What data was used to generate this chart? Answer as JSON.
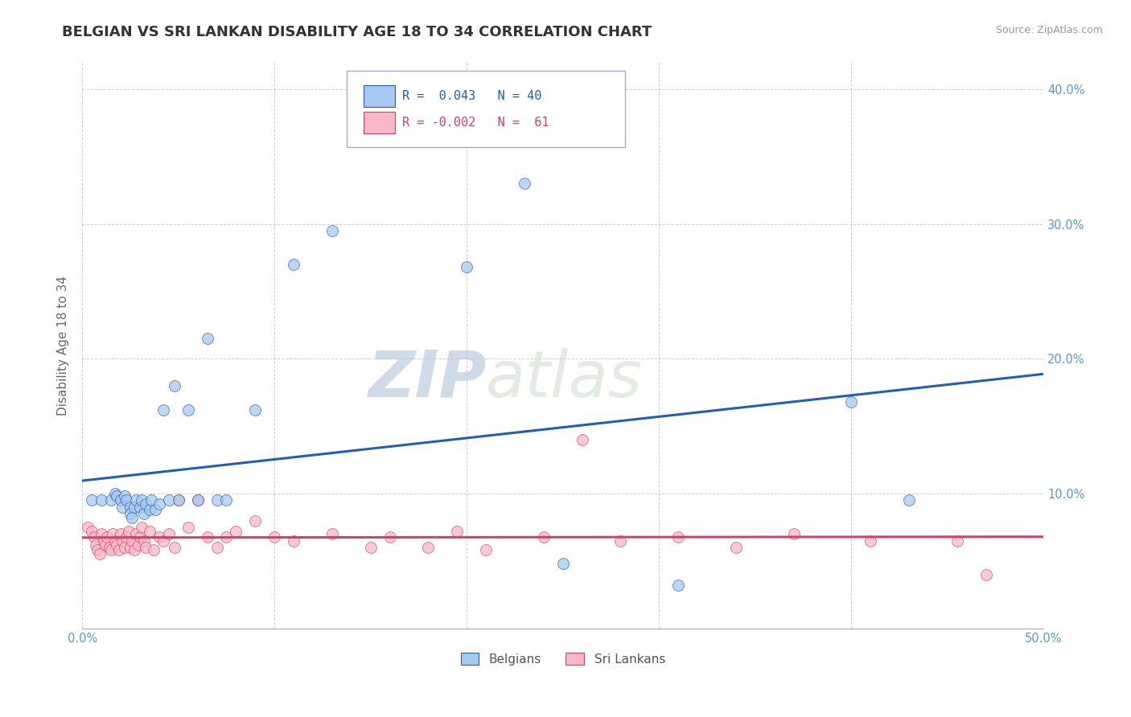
{
  "title": "BELGIAN VS SRI LANKAN DISABILITY AGE 18 TO 34 CORRELATION CHART",
  "source": "Source: ZipAtlas.com",
  "ylabel": "Disability Age 18 to 34",
  "xlim": [
    0.0,
    0.5
  ],
  "ylim": [
    0.0,
    0.42
  ],
  "xticks": [
    0.0,
    0.1,
    0.2,
    0.3,
    0.4,
    0.5
  ],
  "yticks": [
    0.0,
    0.1,
    0.2,
    0.3,
    0.4
  ],
  "xticklabels": [
    "0.0%",
    "",
    "",
    "",
    "",
    "50.0%"
  ],
  "yticklabels_right": [
    "",
    "10.0%",
    "20.0%",
    "30.0%",
    "40.0%"
  ],
  "belgian_color": "#A8C8F0",
  "srilankan_color": "#F8B8C8",
  "belgian_line_color": "#2060B0",
  "srilankan_line_color": "#D04070",
  "watermark": "ZIPatlas",
  "watermark_color": "#C8D8E8",
  "belgian_x": [
    0.005,
    0.01,
    0.015,
    0.017,
    0.018,
    0.02,
    0.021,
    0.022,
    0.023,
    0.025,
    0.025,
    0.026,
    0.027,
    0.028,
    0.03,
    0.031,
    0.032,
    0.033,
    0.035,
    0.036,
    0.038,
    0.04,
    0.042,
    0.045,
    0.048,
    0.05,
    0.055,
    0.06,
    0.065,
    0.07,
    0.075,
    0.09,
    0.11,
    0.13,
    0.2,
    0.23,
    0.25,
    0.31,
    0.4,
    0.43
  ],
  "belgian_y": [
    0.095,
    0.095,
    0.095,
    0.1,
    0.098,
    0.095,
    0.09,
    0.098,
    0.095,
    0.09,
    0.085,
    0.082,
    0.09,
    0.095,
    0.09,
    0.095,
    0.085,
    0.092,
    0.088,
    0.095,
    0.088,
    0.092,
    0.162,
    0.095,
    0.18,
    0.095,
    0.162,
    0.095,
    0.215,
    0.095,
    0.095,
    0.162,
    0.27,
    0.295,
    0.268,
    0.33,
    0.048,
    0.032,
    0.168,
    0.095
  ],
  "srilankan_x": [
    0.003,
    0.005,
    0.006,
    0.007,
    0.008,
    0.009,
    0.01,
    0.011,
    0.012,
    0.013,
    0.014,
    0.015,
    0.016,
    0.017,
    0.018,
    0.019,
    0.02,
    0.021,
    0.022,
    0.023,
    0.024,
    0.025,
    0.026,
    0.027,
    0.028,
    0.029,
    0.03,
    0.031,
    0.032,
    0.033,
    0.035,
    0.037,
    0.04,
    0.042,
    0.045,
    0.048,
    0.05,
    0.055,
    0.06,
    0.065,
    0.07,
    0.075,
    0.08,
    0.09,
    0.1,
    0.11,
    0.13,
    0.15,
    0.16,
    0.18,
    0.195,
    0.21,
    0.24,
    0.26,
    0.28,
    0.31,
    0.34,
    0.37,
    0.41,
    0.455,
    0.47
  ],
  "srilankan_y": [
    0.075,
    0.072,
    0.068,
    0.062,
    0.058,
    0.055,
    0.07,
    0.065,
    0.062,
    0.068,
    0.06,
    0.058,
    0.07,
    0.065,
    0.062,
    0.058,
    0.07,
    0.065,
    0.06,
    0.068,
    0.072,
    0.06,
    0.065,
    0.058,
    0.07,
    0.062,
    0.068,
    0.075,
    0.065,
    0.06,
    0.072,
    0.058,
    0.068,
    0.065,
    0.07,
    0.06,
    0.095,
    0.075,
    0.095,
    0.068,
    0.06,
    0.068,
    0.072,
    0.08,
    0.068,
    0.065,
    0.07,
    0.06,
    0.068,
    0.06,
    0.072,
    0.058,
    0.068,
    0.14,
    0.065,
    0.068,
    0.06,
    0.07,
    0.065,
    0.065,
    0.04
  ],
  "grid_color": "#BBBBBB",
  "background_color": "#FFFFFF",
  "title_fontsize": 13,
  "axis_fontsize": 11,
  "tick_fontsize": 10.5,
  "legend_fontsize": 11
}
